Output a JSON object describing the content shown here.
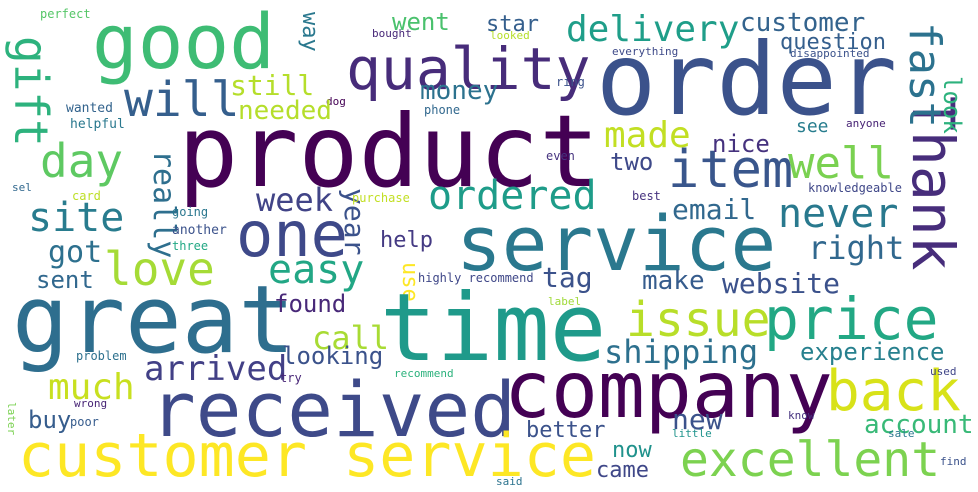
{
  "words": [
    {
      "text": "perfect",
      "color": "#55c667"
    },
    {
      "text": "good",
      "color": "#3ebc74"
    },
    {
      "text": "way",
      "color": "#2a788e"
    },
    {
      "text": "went",
      "color": "#4ac16d"
    },
    {
      "text": "star",
      "color": "#355f8d"
    },
    {
      "text": "delivery",
      "color": "#1f9e89"
    },
    {
      "text": "customer",
      "color": "#33638d"
    },
    {
      "text": "question",
      "color": "#355f8d"
    },
    {
      "text": "bought",
      "color": "#482878"
    },
    {
      "text": "looked",
      "color": "#b5de2b"
    },
    {
      "text": "everything",
      "color": "#3e4a89"
    },
    {
      "text": "disappointed",
      "color": "#3b528b"
    },
    {
      "text": "Thank",
      "color": "#472d7b"
    },
    {
      "text": "fast",
      "color": "#2c728e"
    },
    {
      "text": "gift",
      "color": "#2db27d"
    },
    {
      "text": "quality",
      "color": "#472c7a"
    },
    {
      "text": "order",
      "color": "#3b528b"
    },
    {
      "text": "will",
      "color": "#355f8d"
    },
    {
      "text": "still",
      "color": "#b5de2b"
    },
    {
      "text": "money",
      "color": "#2c728e"
    },
    {
      "text": "ring",
      "color": "#3b528b"
    },
    {
      "text": "look",
      "color": "#2db27d"
    },
    {
      "text": "wanted",
      "color": "#33638d"
    },
    {
      "text": "dog",
      "color": "#440154"
    },
    {
      "text": "phone",
      "color": "#31688e"
    },
    {
      "text": "needed",
      "color": "#b5de2b"
    },
    {
      "text": "helpful",
      "color": "#2a788e"
    },
    {
      "text": "product",
      "color": "#440154"
    },
    {
      "text": "made",
      "color": "#c2df23"
    },
    {
      "text": "see",
      "color": "#287d8e"
    },
    {
      "text": "anyone",
      "color": "#482475"
    },
    {
      "text": "day",
      "color": "#5ec962"
    },
    {
      "text": "item",
      "color": "#39568c"
    },
    {
      "text": "nice",
      "color": "#46327e"
    },
    {
      "text": "two",
      "color": "#3e4989"
    },
    {
      "text": "well",
      "color": "#7ad151"
    },
    {
      "text": "even",
      "color": "#46337f"
    },
    {
      "text": "sel",
      "color": "#31688e"
    },
    {
      "text": "card",
      "color": "#bddf26"
    },
    {
      "text": "knowledgeable",
      "color": "#3f4788"
    },
    {
      "text": "really",
      "color": "#2e6f8e"
    },
    {
      "text": "site",
      "color": "#287c8e"
    },
    {
      "text": "week",
      "color": "#414487"
    },
    {
      "text": "year",
      "color": "#3b528b"
    },
    {
      "text": "ordered",
      "color": "#1e9c89"
    },
    {
      "text": "purchase",
      "color": "#c2df23"
    },
    {
      "text": "best",
      "color": "#46337f"
    },
    {
      "text": "email",
      "color": "#31688e"
    },
    {
      "text": "never",
      "color": "#29798e"
    },
    {
      "text": "going",
      "color": "#2a778e"
    },
    {
      "text": "another",
      "color": "#3b528b"
    },
    {
      "text": "three",
      "color": "#22a884"
    },
    {
      "text": "one",
      "color": "#3e4989"
    },
    {
      "text": "service",
      "color": "#2a788e"
    },
    {
      "text": "help",
      "color": "#443a83"
    },
    {
      "text": "right",
      "color": "#31688e"
    },
    {
      "text": "love",
      "color": "#a5db36"
    },
    {
      "text": "easy",
      "color": "#22a785"
    },
    {
      "text": "got",
      "color": "#2d708e"
    },
    {
      "text": "sent",
      "color": "#31688e"
    },
    {
      "text": "use",
      "color": "#fde725"
    },
    {
      "text": "tag",
      "color": "#3b528b"
    },
    {
      "text": "make",
      "color": "#365c8d"
    },
    {
      "text": "website",
      "color": "#3b518b"
    },
    {
      "text": "highly recommend",
      "color": "#3f4788"
    },
    {
      "text": "great",
      "color": "#2e6e8e"
    },
    {
      "text": "time",
      "color": "#1f9a8a"
    },
    {
      "text": "found",
      "color": "#482878"
    },
    {
      "text": "issue",
      "color": "#b8de29"
    },
    {
      "text": "price",
      "color": "#22a884"
    },
    {
      "text": "label",
      "color": "#a0da39"
    },
    {
      "text": "call",
      "color": "#a8db34"
    },
    {
      "text": "shipping",
      "color": "#2d708e"
    },
    {
      "text": "experience",
      "color": "#27808e"
    },
    {
      "text": "arrived",
      "color": "#424086"
    },
    {
      "text": "looking",
      "color": "#3b528b"
    },
    {
      "text": "problem",
      "color": "#2d718e"
    },
    {
      "text": "company",
      "color": "#440154"
    },
    {
      "text": "back",
      "color": "#d8e219"
    },
    {
      "text": "try",
      "color": "#482677"
    },
    {
      "text": "recommend",
      "color": "#2db27d"
    },
    {
      "text": "used",
      "color": "#404588"
    },
    {
      "text": "much",
      "color": "#c8e020"
    },
    {
      "text": "received",
      "color": "#3e4a89"
    },
    {
      "text": "wrong",
      "color": "#482576"
    },
    {
      "text": "later",
      "color": "#7ad151"
    },
    {
      "text": "poor",
      "color": "#365c8d"
    },
    {
      "text": "buy",
      "color": "#365d8d"
    },
    {
      "text": "new",
      "color": "#3b528b"
    },
    {
      "text": "account",
      "color": "#38b977"
    },
    {
      "text": "know",
      "color": "#46337f"
    },
    {
      "text": "better",
      "color": "#3b528b"
    },
    {
      "text": "little",
      "color": "#1f948c"
    },
    {
      "text": "sale",
      "color": "#2a788e"
    },
    {
      "text": "customer service",
      "color": "#fde725"
    },
    {
      "text": "now",
      "color": "#20928c"
    },
    {
      "text": "excellent",
      "color": "#7cd250"
    },
    {
      "text": "came",
      "color": "#3f4788"
    },
    {
      "text": "find",
      "color": "#3b528b"
    },
    {
      "text": "said",
      "color": "#2c738e"
    }
  ]
}
